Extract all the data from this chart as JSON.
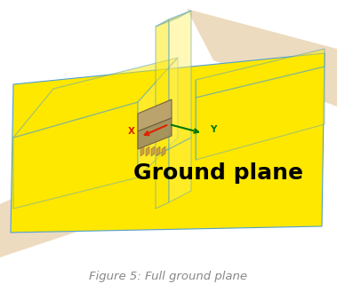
{
  "bg_color": "#ffffff",
  "yellow": "#FFE800",
  "yellow_light": "#FFF060",
  "yellow_edge": "#50A0D0",
  "beige": "#DDB880",
  "beige_alpha": 0.55,
  "comp_top": "#B8A070",
  "comp_side": "#A09060",
  "comp_edge": "#706040",
  "pin_color": "#CC9944",
  "axis_x": "#DD2200",
  "axis_y": "#007700",
  "label_x": "X",
  "label_y": "Y",
  "gp_label": "Ground plane",
  "gp_label_fontsize": 18,
  "caption": "Figure 5: Full ground plane",
  "caption_fontsize": 9.5,
  "caption_color": "#888888"
}
